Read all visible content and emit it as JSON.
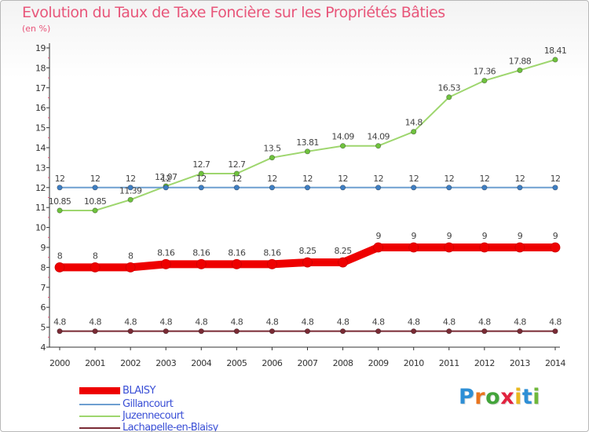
{
  "header": {
    "title": "Evolution du Taux de Taxe Foncière sur les Propriétés Bâties",
    "unit": "(en %)"
  },
  "brand": {
    "text": "Proxiti",
    "letter_colors": [
      "#2e8fd6",
      "#e9751f",
      "#43a43b",
      "#e2233f",
      "#e9b81f",
      "#2e8fd6",
      "#6fb83a"
    ]
  },
  "chart_data": {
    "type": "line",
    "title": "Evolution du Taux de Taxe Foncière sur les Propriétés Bâties",
    "ylabel": "(en %)",
    "xlabel": "",
    "x": [
      "2000",
      "2001",
      "2002",
      "2003",
      "2004",
      "2005",
      "2006",
      "2007",
      "2008",
      "2009",
      "2010",
      "2011",
      "2012",
      "2013",
      "2014"
    ],
    "ylim": [
      4,
      19
    ],
    "yticks": [
      4,
      5,
      6,
      7,
      8,
      9,
      10,
      11,
      12,
      13,
      14,
      15,
      16,
      17,
      18,
      19
    ],
    "grid": false,
    "legend_position": "bottom-left",
    "series": [
      {
        "name": "Lachapelle-en-Blaisy",
        "color": "#7a2b35",
        "weight": "thin",
        "values": [
          4.8,
          4.8,
          4.8,
          4.8,
          4.8,
          4.8,
          4.8,
          4.8,
          4.8,
          4.8,
          4.8,
          4.8,
          4.8,
          4.8,
          4.8
        ],
        "labels": [
          "4.8",
          "4.8",
          "4.8",
          "4.8",
          "4.8",
          "4.8",
          "4.8",
          "4.8",
          "4.8",
          "4.8",
          "4.8",
          "4.8",
          "4.8",
          "4.8",
          "4.8"
        ]
      },
      {
        "name": "Juzennecourt",
        "color": "#9ed66e",
        "marker_color": "#6fc23e",
        "weight": "thin",
        "values": [
          10.85,
          10.85,
          11.39,
          12.07,
          12.7,
          12.7,
          13.5,
          13.81,
          14.09,
          14.09,
          14.8,
          16.53,
          17.36,
          17.88,
          18.41
        ],
        "labels": [
          "10.85",
          "10.85",
          "11.39",
          "12.07",
          "12.7",
          "12.7",
          "13.5",
          "13.81",
          "14.09",
          "14.09",
          "14.8",
          "16.53",
          "17.36",
          "17.88",
          "18.41"
        ]
      },
      {
        "name": "Gillancourt",
        "color": "#6d9fd0",
        "marker_color": "#3f7fc4",
        "weight": "thin",
        "values": [
          12,
          12,
          12,
          12,
          12,
          12,
          12,
          12,
          12,
          12,
          12,
          12,
          12,
          12,
          12
        ],
        "labels": [
          "12",
          "12",
          "12",
          "12",
          "12",
          "12",
          "12",
          "12",
          "12",
          "12",
          "12",
          "12",
          "12",
          "12",
          "12"
        ]
      },
      {
        "name": "BLAISY",
        "color": "#ee0000",
        "weight": "thick",
        "values": [
          8,
          8,
          8,
          8.16,
          8.16,
          8.16,
          8.16,
          8.25,
          8.25,
          9,
          9,
          9,
          9,
          9,
          9
        ],
        "labels": [
          "8",
          "8",
          "8",
          "8.16",
          "8.16",
          "8.16",
          "8.16",
          "8.25",
          "8.25",
          "9",
          "9",
          "9",
          "9",
          "9",
          "9"
        ]
      }
    ],
    "legend": [
      "BLAISY",
      "Gillancourt",
      "Juzennecourt",
      "Lachapelle-en-Blaisy"
    ]
  }
}
